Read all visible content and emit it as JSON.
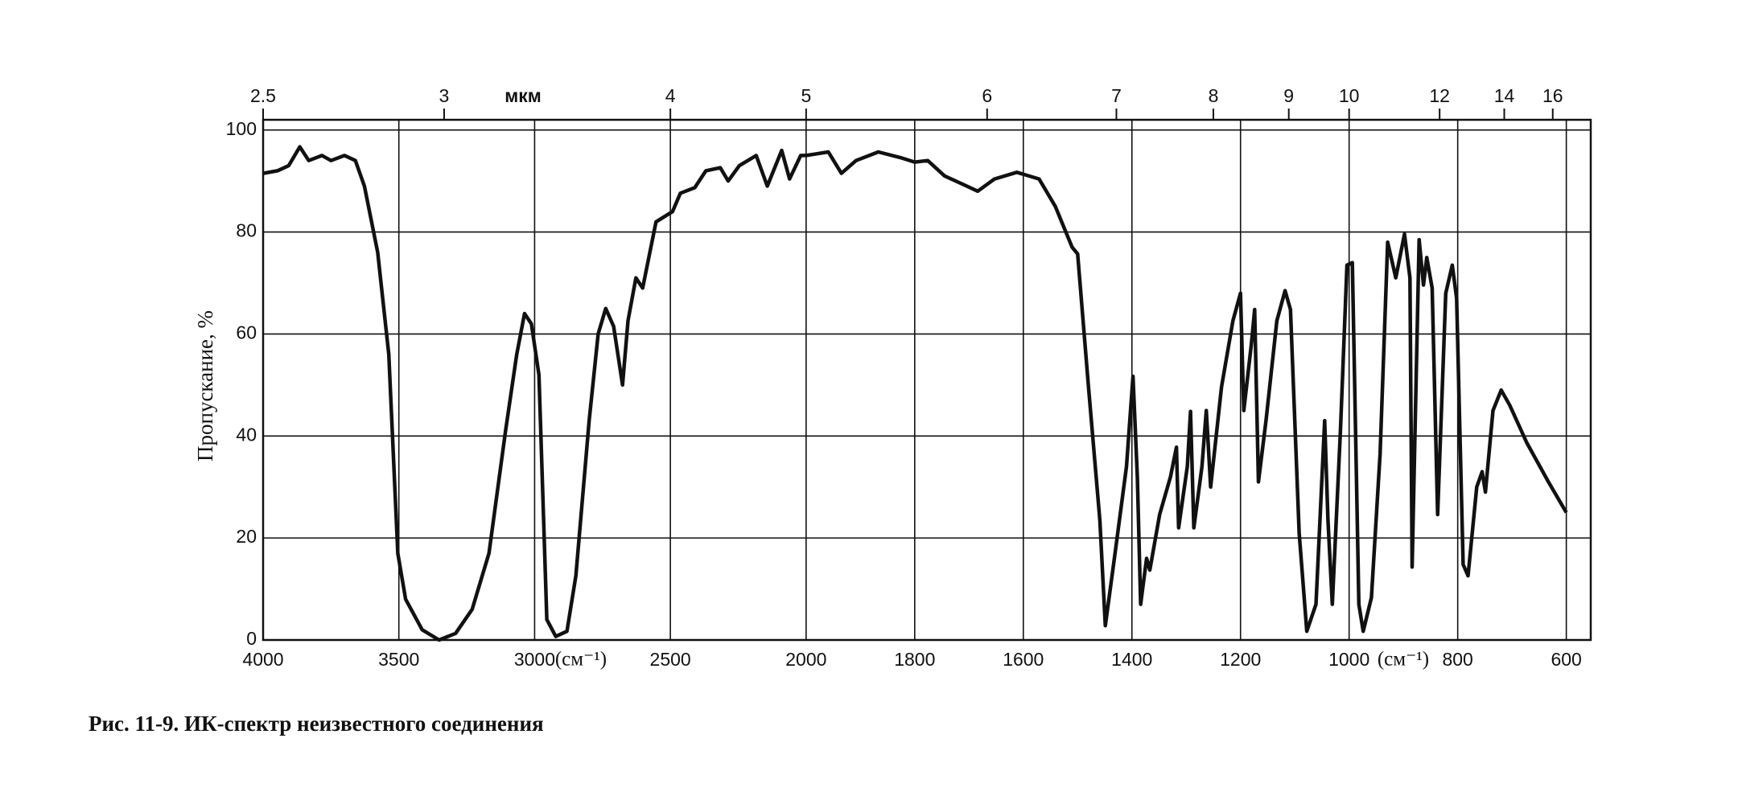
{
  "chart_data": {
    "type": "line",
    "ylabel": "Пропускание, %",
    "x2label": "мкм",
    "xunit_labels": [
      "(см⁻¹)",
      "(см⁻¹)"
    ],
    "caption": "Рис. 11-9.  ИК-спектр неизвестного соединения",
    "xlim": [
      4000,
      555
    ],
    "xbreak": 2000,
    "xticks": [
      4000,
      3500,
      3000,
      2500,
      2000,
      1800,
      1600,
      1400,
      1200,
      1000,
      800,
      600
    ],
    "x2ticks": [
      2.5,
      3,
      4,
      5,
      6,
      7,
      8,
      9,
      10,
      12,
      14,
      16
    ],
    "ylim": [
      0,
      102
    ],
    "yticks": [
      0,
      20,
      40,
      60,
      80,
      100
    ],
    "grid": true,
    "color": "#111111",
    "x": [
      4000,
      3947,
      3906,
      3865,
      3832,
      3783,
      3750,
      3700,
      3660,
      3627,
      3578,
      3537,
      3504,
      3475,
      3414,
      3352,
      3291,
      3230,
      3168,
      3107,
      3066,
      3037,
      3012,
      2984,
      2955,
      2922,
      2881,
      2848,
      2799,
      2766,
      2738,
      2709,
      2676,
      2656,
      2627,
      2602,
      2553,
      2492,
      2463,
      2410,
      2369,
      2316,
      2287,
      2246,
      2184,
      2143,
      2090,
      2061,
      2020,
      2000,
      1959,
      1935,
      1908,
      1867,
      1827,
      1800,
      1776,
      1745,
      1704,
      1684,
      1653,
      1612,
      1571,
      1541,
      1510,
      1500,
      1480,
      1459,
      1449,
      1431,
      1410,
      1398,
      1390,
      1384,
      1373,
      1367,
      1349,
      1329,
      1318,
      1314,
      1298,
      1292,
      1286,
      1271,
      1263,
      1255,
      1235,
      1214,
      1200,
      1194,
      1180,
      1174,
      1167,
      1153,
      1133,
      1118,
      1108,
      1092,
      1078,
      1061,
      1045,
      1039,
      1031,
      1016,
      1004,
      994,
      982,
      974,
      959,
      943,
      929,
      914,
      898,
      888,
      884,
      871,
      863,
      857,
      847,
      837,
      822,
      810,
      802,
      790,
      781,
      765,
      755,
      749,
      735,
      720,
      704,
      673,
      633,
      600
    ],
    "values": [
      91.5,
      92,
      93,
      96.7,
      94,
      95,
      94,
      95,
      94,
      89,
      76,
      56,
      17,
      8,
      2,
      0,
      1.3,
      6,
      17,
      41,
      56,
      64,
      62,
      52,
      4,
      0.7,
      1.7,
      12.6,
      43,
      60,
      65,
      61.5,
      50,
      62.6,
      71,
      69,
      82,
      84,
      87.6,
      88.7,
      92,
      92.6,
      90,
      93,
      95,
      89,
      96,
      90.4,
      95,
      95,
      95.7,
      91.5,
      94,
      95.7,
      94.6,
      93.7,
      94,
      91,
      89,
      88,
      90.4,
      91.7,
      90.4,
      85,
      77,
      75.7,
      49.6,
      23.5,
      2.8,
      17,
      34,
      51.7,
      32,
      7,
      16,
      13.7,
      24.6,
      32,
      37.8,
      22,
      34,
      44.8,
      22,
      34,
      45,
      30,
      49.6,
      62.6,
      68,
      45,
      58,
      64.8,
      31,
      43,
      62.6,
      68.5,
      64.8,
      21,
      1.7,
      7,
      43,
      23.5,
      7,
      41,
      73.5,
      74,
      7,
      1.7,
      8.3,
      36.5,
      78,
      71,
      79.6,
      71,
      14.3,
      78.5,
      69.6,
      75,
      69,
      24.6,
      68,
      73.5,
      67,
      14.8,
      12.6,
      30,
      33,
      29,
      45,
      49,
      46,
      38.7,
      31,
      25
    ]
  }
}
